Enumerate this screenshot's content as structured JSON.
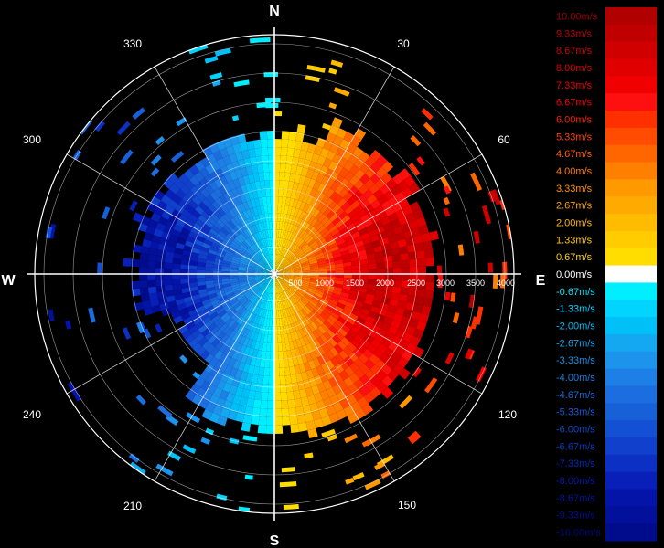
{
  "chart_data": {
    "type": "heatmap",
    "title": "",
    "plot": "polar-ppi",
    "cardinal_labels": [
      "N",
      "E",
      "S",
      "W"
    ],
    "angle_labels": [
      "30",
      "60",
      "120",
      "150",
      "210",
      "240",
      "300",
      "330"
    ],
    "range_ticks": [
      "500",
      "1000",
      "1500",
      "2000",
      "2500",
      "3000",
      "3500",
      "4000"
    ],
    "range_max": 4000,
    "colorbar": {
      "labels": [
        "10.00m/s",
        "9.33m/s",
        "8.67m/s",
        "8.00m/s",
        "7.33m/s",
        "6.67m/s",
        "6.00m/s",
        "5.33m/s",
        "4.67m/s",
        "4.00m/s",
        "3.33m/s",
        "2.67m/s",
        "2.00m/s",
        "1.33m/s",
        "0.67m/s",
        "0.00m/s",
        "-0.67m/s",
        "-1.33m/s",
        "-2.00m/s",
        "-2.67m/s",
        "-3.33m/s",
        "-4.00m/s",
        "-4.67m/s",
        "-5.33m/s",
        "-6.00m/s",
        "-6.67m/s",
        "-7.33m/s",
        "-8.00m/s",
        "-8.67m/s",
        "-9.33m/s",
        "-10.00m/s"
      ],
      "colors": [
        "#b00000",
        "#c00000",
        "#d00000",
        "#e00000",
        "#f00000",
        "#ff1010",
        "#ff3000",
        "#ff4c00",
        "#ff6600",
        "#ff7f00",
        "#ff9900",
        "#ffaa00",
        "#ffbb00",
        "#ffcc00",
        "#ffdd00",
        "#ffffff",
        "#00eeff",
        "#00d4ff",
        "#00c0f8",
        "#14a8f0",
        "#1c94ec",
        "#1e80e6",
        "#1c6ee0",
        "#1860d8",
        "#1450d4",
        "#1040cc",
        "#0c30c4",
        "#0820b8",
        "#0414a8",
        "#02109a",
        "#000c8c"
      ],
      "label_colors": [
        "#a00000",
        "#b80000",
        "#c80000",
        "#d80000",
        "#e80000",
        "#f00000",
        "#ff2000",
        "#ff4000",
        "#ff5c00",
        "#ff7800",
        "#ff9000",
        "#ffa000",
        "#ffb400",
        "#ffc400",
        "#ffd400",
        "#ffffff",
        "#00e6ff",
        "#00d0ff",
        "#00bcf4",
        "#10a4ec",
        "#1890e6",
        "#1a7ce0",
        "#186ad8",
        "#145ad0",
        "#1048c8",
        "#0c38c0",
        "#0828b4",
        "#061ca8",
        "#041498",
        "#020e8c",
        "#000a80"
      ]
    },
    "radial_velocity_field": "positive (red/orange) east half, negative (blue/cyan) west half; zero line along the N-S axis"
  }
}
